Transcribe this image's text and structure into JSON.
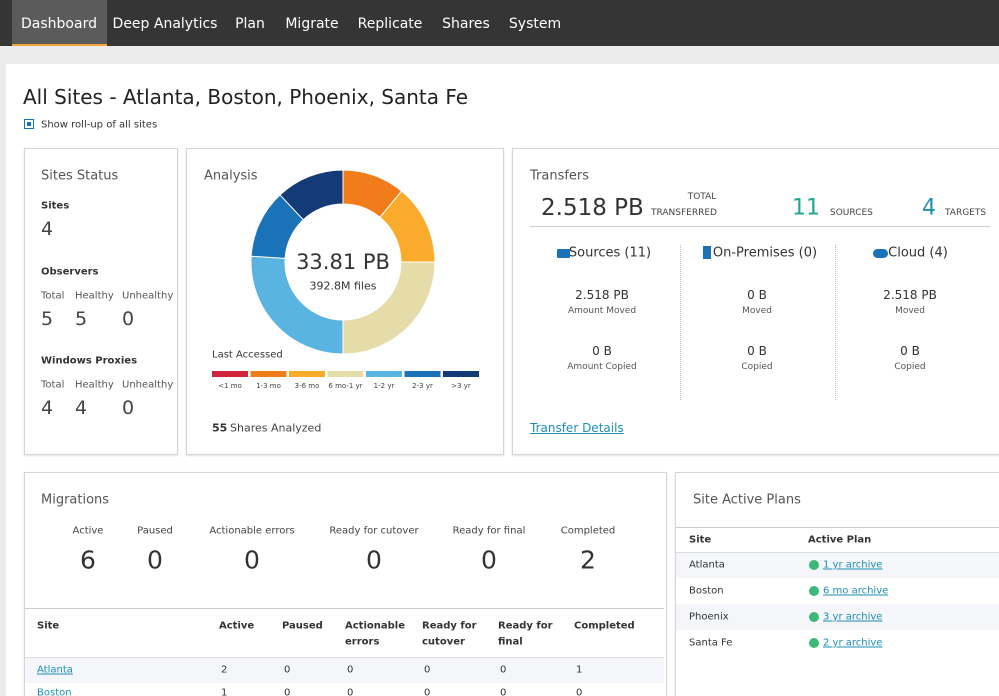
{
  "nav": [
    "Dashboard",
    "Deep Analytics",
    "Plan",
    "Migrate",
    "Replicate",
    "Shares",
    "System"
  ],
  "title": "All Sites - Atlanta, Boston, Phoenix, Santa Fe",
  "rollup": "Show roll-up of all sites",
  "sites_status": {
    "title": "Sites Status",
    "sites_label": "Sites",
    "sites_value": 4,
    "groups": [
      {
        "label": "Observers",
        "columns": [
          "Total",
          "Healthy",
          "Unhealthy"
        ],
        "values": [
          5,
          5,
          0
        ]
      },
      {
        "label": "Windows Proxies",
        "columns": [
          "Total",
          "Healthy",
          "Unhealthy"
        ],
        "values": [
          4,
          4,
          0
        ]
      }
    ]
  },
  "analysis": {
    "title": "Analysis",
    "total": "33.81 PB",
    "files": "392.8M files",
    "legend_title": "Last Accessed",
    "chart_data": {
      "type": "pie",
      "categories": [
        "<1 mo",
        "1-3 mo",
        "3-6 mo",
        "6 mo-1 yr",
        "1-2 yr",
        "2-3 yr",
        ">3 yr"
      ],
      "values": [
        0,
        11,
        14,
        25,
        26,
        12,
        12
      ],
      "colors": [
        "#d0253a",
        "#f07d1a",
        "#fbab2c",
        "#e6dcaa",
        "#5ab4e2",
        "#1a72b8",
        "#143a78"
      ]
    },
    "shares_count": 55,
    "shares_label": "Shares Analyzed"
  },
  "transfers": {
    "title": "Transfers",
    "total": "2.518 PB",
    "total_label": [
      "TOTAL",
      "TRANSFERRED"
    ],
    "sources": 11,
    "sources_label": "SOURCES",
    "targets": 4,
    "targets_label": "TARGETS",
    "columns": [
      {
        "title": "Sources (11)",
        "rows": [
          {
            "value": "2.518 PB",
            "label": "Amount Moved"
          },
          {
            "value": "0 B",
            "label": "Amount Copied"
          }
        ]
      },
      {
        "title": "On-Premises (0)",
        "rows": [
          {
            "value": "0 B",
            "label": "Moved"
          },
          {
            "value": "0 B",
            "label": "Copied"
          }
        ]
      },
      {
        "title": "Cloud (4)",
        "rows": [
          {
            "value": "2.518 PB",
            "label": "Moved"
          },
          {
            "value": "0 B",
            "label": "Copied"
          }
        ]
      }
    ],
    "link": "Transfer Details"
  },
  "migrations": {
    "title": "Migrations",
    "summary": [
      {
        "label": "Active",
        "value": 6
      },
      {
        "label": "Paused",
        "value": 0
      },
      {
        "label": "Actionable errors",
        "value": 0
      },
      {
        "label": "Ready for cutover",
        "value": 0
      },
      {
        "label": "Ready for final",
        "value": 0
      },
      {
        "label": "Completed",
        "value": 2
      }
    ],
    "table": {
      "header": [
        "Site",
        "Active",
        "Paused",
        [
          "Actionable",
          "errors"
        ],
        [
          "Ready for",
          "cutover"
        ],
        [
          "Ready for",
          "final"
        ],
        "Completed"
      ],
      "rows": [
        [
          "Atlanta",
          2,
          0,
          0,
          0,
          0,
          1
        ],
        [
          "Boston",
          1,
          0,
          0,
          0,
          0,
          0
        ]
      ]
    }
  },
  "plans": {
    "title": "Site Active Plans",
    "header": [
      "Site",
      "Active Plan"
    ],
    "rows": [
      [
        "Atlanta",
        "1 yr archive"
      ],
      [
        "Boston",
        "6 mo archive"
      ],
      [
        "Phoenix",
        "3 yr archive"
      ],
      [
        "Santa Fe",
        "2 yr archive"
      ]
    ]
  }
}
